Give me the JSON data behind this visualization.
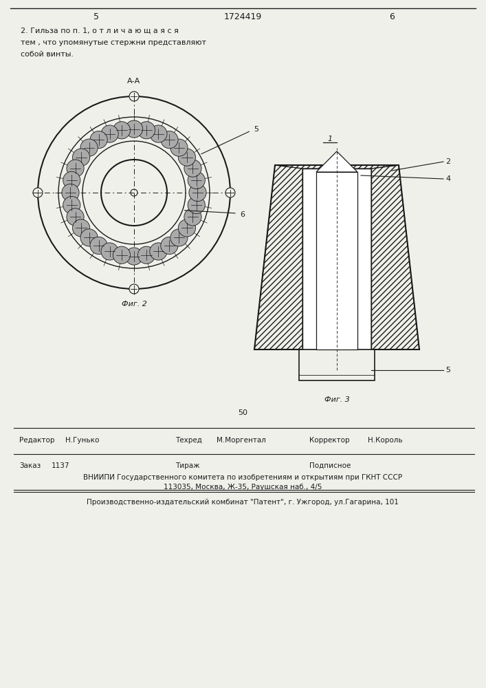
{
  "page_number_left": "5",
  "patent_number": "1724419",
  "page_number_right": "6",
  "claim_text_lines": [
    "2. Гильза по п. 1, о т л и ч а ю щ а я с я",
    "тем , что упомянутые стержни представляют",
    "собой винты."
  ],
  "fig2_label": "Фиг. 2",
  "fig3_label": "Фиг. 3",
  "fig2_section_label": "А-А",
  "fig3_part_label": "1",
  "label_5_fig2": "5",
  "label_6_fig2": "6",
  "label_2_fig3": "2",
  "label_4_fig3": "4",
  "label_5_fig3": "5",
  "page_num_bottom": "50",
  "editor_label": "Редактор",
  "editor_name": "Н.Гунько",
  "techred_label": "Техред",
  "techred_name": "М.Моргентал",
  "corrector_label": "Корректор",
  "corrector_name": "Н.Король",
  "order_label": "Заказ",
  "order_num": "1137",
  "tirazh_label": "Тираж",
  "podpisnoe_label": "Подписное",
  "vniiipi_line1": "ВНИИПИ Государственного комитета по изобретениям и открытиям при ГКНТ СССР",
  "vniiipi_line2": "113035, Москва, Ж-35, Раушская наб., 4/5",
  "publisher_line": "Производственно-издательский комбинат \"Патент\", г. Ужгород, ул.Гагарина, 101",
  "bg_color": "#f0f0eb",
  "line_color": "#1a1a1a"
}
